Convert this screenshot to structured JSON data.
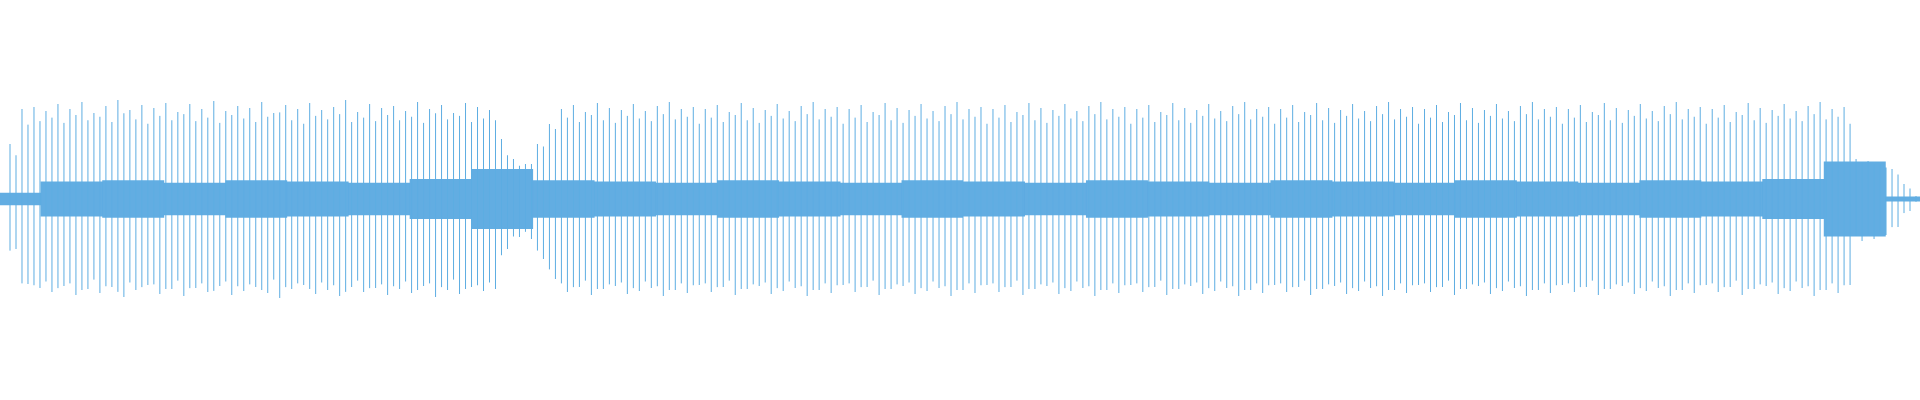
{
  "waveform": {
    "color": "#5dade2",
    "peaks": [
      0.55,
      0.9,
      0.92,
      0.88,
      0.95,
      0.9,
      0.97,
      0.86,
      0.93,
      0.99,
      0.89,
      0.94,
      0.91,
      0.96,
      0.87,
      0.95,
      0.9,
      0.98,
      0.88,
      0.93,
      0.91,
      0.97,
      0.86,
      0.94,
      0.9,
      0.96,
      0.89,
      0.92,
      0.99,
      0.87,
      0.95,
      0.91,
      0.93,
      0.88,
      0.97,
      0.9,
      0.94,
      0.86,
      0.96,
      0.92,
      0.89,
      0.6,
      0.4,
      0.35,
      0.55,
      0.75,
      0.9,
      0.94,
      0.87,
      0.96,
      0.91,
      0.89,
      0.95,
      0.88,
      0.93,
      0.97,
      0.9,
      0.92,
      0.9,
      0.94,
      0.87,
      0.96,
      0.91,
      0.89,
      0.95,
      0.88,
      0.93,
      0.97,
      0.9,
      0.92,
      0.9,
      0.94,
      0.87,
      0.96,
      0.91,
      0.89,
      0.95,
      0.88,
      0.93,
      0.97,
      0.9,
      0.92,
      0.9,
      0.94,
      0.87,
      0.96,
      0.91,
      0.89,
      0.95,
      0.88,
      0.93,
      0.97,
      0.9,
      0.92,
      0.9,
      0.94,
      0.87,
      0.96,
      0.91,
      0.89,
      0.95,
      0.88,
      0.93,
      0.97,
      0.9,
      0.92,
      0.9,
      0.94,
      0.87,
      0.96,
      0.91,
      0.89,
      0.95,
      0.88,
      0.93,
      0.97,
      0.9,
      0.92,
      0.9,
      0.94,
      0.87,
      0.96,
      0.91,
      0.89,
      0.95,
      0.88,
      0.93,
      0.97,
      0.9,
      0.92,
      0.9,
      0.94,
      0.87,
      0.96,
      0.91,
      0.89,
      0.95,
      0.88,
      0.93,
      0.97,
      0.9,
      0.92,
      0.9,
      0.94,
      0.87,
      0.96,
      0.91,
      0.89,
      0.95,
      0.88,
      0.93,
      0.97,
      0.9,
      0.92,
      0.4,
      0.38,
      0.35,
      0.3,
      0.15,
      0.03
    ],
    "lows": [
      0.5,
      0.85,
      0.89,
      0.93,
      0.87,
      0.96,
      0.9,
      0.94,
      0.88,
      0.98,
      0.91,
      0.86,
      0.95,
      0.9,
      0.97,
      0.89,
      0.93,
      0.87,
      0.96,
      0.92,
      0.88,
      0.94,
      0.99,
      0.9,
      0.86,
      0.95,
      0.91,
      0.97,
      0.88,
      0.93,
      0.89,
      0.96,
      0.9,
      0.94,
      0.87,
      0.98,
      0.91,
      0.95,
      0.88,
      0.92,
      0.9,
      0.5,
      0.38,
      0.4,
      0.6,
      0.8,
      0.93,
      0.88,
      0.96,
      0.9,
      0.87,
      0.95,
      0.92,
      0.89,
      0.97,
      0.91,
      0.94,
      0.86,
      0.93,
      0.88,
      0.96,
      0.9,
      0.87,
      0.95,
      0.92,
      0.89,
      0.97,
      0.91,
      0.94,
      0.86,
      0.93,
      0.88,
      0.96,
      0.9,
      0.87,
      0.95,
      0.92,
      0.89,
      0.97,
      0.91,
      0.94,
      0.86,
      0.93,
      0.88,
      0.96,
      0.9,
      0.87,
      0.95,
      0.92,
      0.89,
      0.97,
      0.91,
      0.94,
      0.86,
      0.93,
      0.88,
      0.96,
      0.9,
      0.87,
      0.95,
      0.92,
      0.89,
      0.97,
      0.91,
      0.94,
      0.86,
      0.93,
      0.88,
      0.96,
      0.9,
      0.87,
      0.95,
      0.92,
      0.89,
      0.97,
      0.91,
      0.94,
      0.86,
      0.93,
      0.88,
      0.96,
      0.9,
      0.87,
      0.95,
      0.92,
      0.89,
      0.97,
      0.91,
      0.94,
      0.86,
      0.93,
      0.88,
      0.96,
      0.9,
      0.87,
      0.95,
      0.92,
      0.89,
      0.97,
      0.91,
      0.94,
      0.86,
      0.93,
      0.88,
      0.96,
      0.9,
      0.87,
      0.95,
      0.92,
      0.89,
      0.97,
      0.91,
      0.94,
      0.86,
      0.42,
      0.4,
      0.36,
      0.28,
      0.12,
      0.02
    ],
    "core": [
      0.05,
      0.14,
      0.15,
      0.13,
      0.15,
      0.14,
      0.13,
      0.16,
      0.24,
      0.15,
      0.14,
      0.13,
      0.15,
      0.14,
      0.13,
      0.15,
      0.14,
      0.13,
      0.15,
      0.14,
      0.13,
      0.15,
      0.14,
      0.13,
      0.15,
      0.14,
      0.13,
      0.15,
      0.14,
      0.16,
      0.3,
      0.02
    ]
  }
}
